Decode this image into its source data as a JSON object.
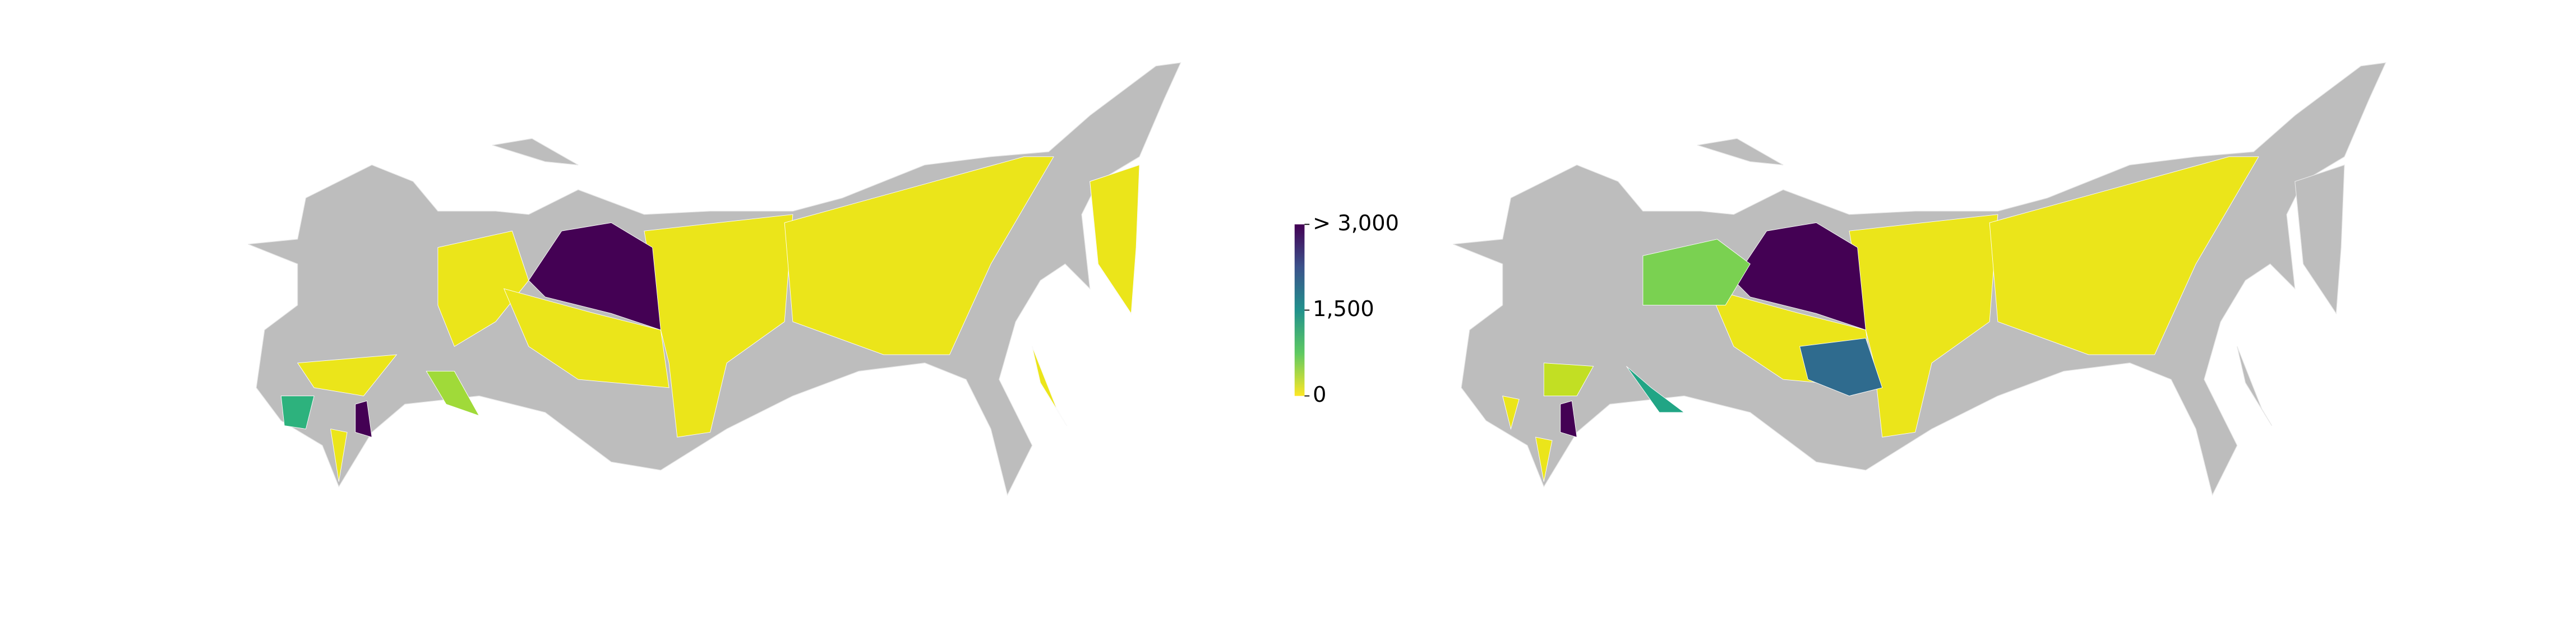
{
  "chart_data": {
    "type": "choropleth",
    "colorbar": {
      "lim": [
        0,
        3000
      ],
      "ticks": [
        {
          "value": 3000,
          "label": "> 3,000"
        },
        {
          "value": 1500,
          "label": "1,500"
        },
        0
      ]
    }
  }
}
